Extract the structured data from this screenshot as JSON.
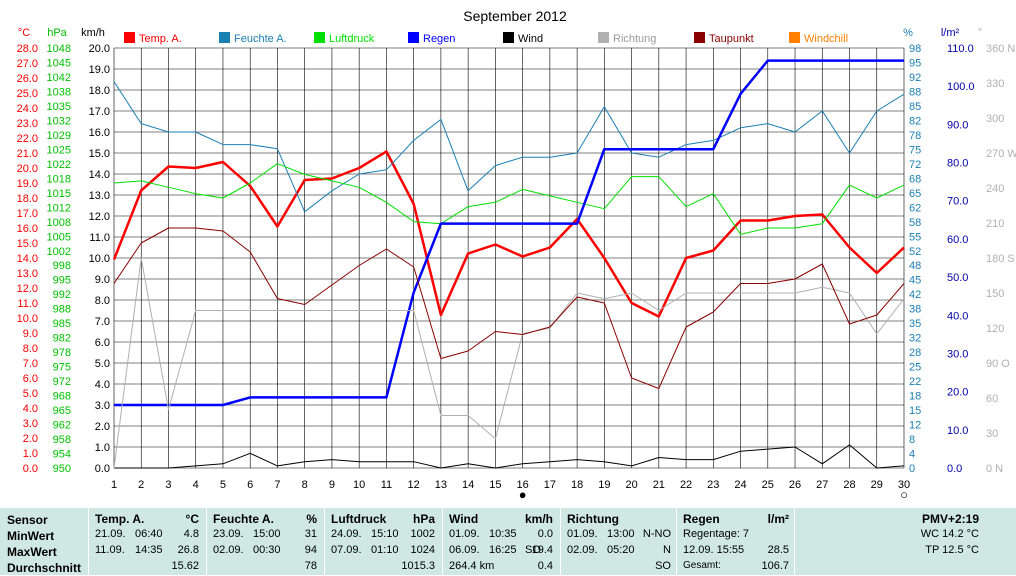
{
  "chart_data": {
    "type": "line",
    "title": "September 2012",
    "x": [
      1,
      2,
      3,
      4,
      5,
      6,
      7,
      8,
      9,
      10,
      11,
      12,
      13,
      14,
      15,
      16,
      17,
      18,
      19,
      20,
      21,
      22,
      23,
      24,
      25,
      26,
      27,
      28,
      29,
      30
    ],
    "xlim": [
      1,
      30
    ],
    "legend": [
      {
        "label": "Temp. A.",
        "color": "#ff0000"
      },
      {
        "label": "Feuchte A.",
        "color": "#1a7fb3"
      },
      {
        "label": "Luftdruck",
        "color": "#00e000"
      },
      {
        "label": "Regen",
        "color": "#0000ff"
      },
      {
        "label": "Wind",
        "color": "#000000"
      },
      {
        "label": "Richtung",
        "color": "#b0b0b0"
      },
      {
        "label": "Taupunkt",
        "color": "#8b0000"
      },
      {
        "label": "Windchill",
        "color": "#ff8000"
      }
    ],
    "axes": {
      "temp": {
        "unit": "°C",
        "color": "#ff0000",
        "min": 0,
        "max": 28,
        "ticks": [
          "0.0",
          "1.0",
          "2.0",
          "3.0",
          "4.0",
          "5.0",
          "6.0",
          "7.0",
          "8.0",
          "9.0",
          "10.0",
          "11.0",
          "12.0",
          "13.0",
          "14.0",
          "15.0",
          "16.0",
          "17.0",
          "18.0",
          "19.0",
          "20.0",
          "21.0",
          "22.0",
          "23.0",
          "24.0",
          "25.0",
          "26.0",
          "27.0",
          "28.0"
        ]
      },
      "pressure": {
        "unit": "hPa",
        "color": "#00c000",
        "min": 950,
        "max": 1048,
        "ticks": [
          "950",
          "954",
          "958",
          "962",
          "965",
          "968",
          "972",
          "975",
          "978",
          "982",
          "985",
          "988",
          "992",
          "995",
          "998",
          "1002",
          "1005",
          "1008",
          "1012",
          "1015",
          "1018",
          "1022",
          "1025",
          "1029",
          "1032",
          "1035",
          "1038",
          "1042",
          "1045",
          "1048"
        ]
      },
      "wind": {
        "unit": "km/h",
        "color": "#000000",
        "min": 0,
        "max": 20,
        "ticks": [
          "0.0",
          "1.0",
          "2.0",
          "3.0",
          "4.0",
          "5.0",
          "6.0",
          "7.0",
          "8.0",
          "9.0",
          "10.0",
          "11.0",
          "12.0",
          "13.0",
          "14.0",
          "15.0",
          "16.0",
          "17.0",
          "18.0",
          "19.0",
          "20.0"
        ]
      },
      "humidity": {
        "unit": "%",
        "color": "#1a7fb3",
        "min": 0,
        "max": 100,
        "ticks": [
          "0",
          "4",
          "8",
          "12",
          "15",
          "18",
          "22",
          "25",
          "28",
          "32",
          "35",
          "38",
          "42",
          "45",
          "48",
          "52",
          "55",
          "58",
          "62",
          "65",
          "68",
          "72",
          "75",
          "78",
          "82",
          "85",
          "88",
          "92",
          "95",
          "98"
        ]
      },
      "rain": {
        "unit": "l/m²",
        "color": "#0000aa",
        "min": 0,
        "max": 110,
        "ticks": [
          "0.0",
          "10.0",
          "20.0",
          "30.0",
          "40.0",
          "50.0",
          "60.0",
          "70.0",
          "80.0",
          "90.0",
          "100.0",
          "110.0"
        ]
      },
      "direction": {
        "unit": "°",
        "color": "#b0b0b0",
        "min": 0,
        "max": 360,
        "ticks": [
          "0 N",
          "30",
          "60",
          "90 O",
          "120",
          "150",
          "180 S",
          "210",
          "240",
          "270 W",
          "300",
          "330",
          "360 N"
        ]
      }
    },
    "series": [
      {
        "name": "Temp. A.",
        "axis": "temp",
        "color": "#ff0000",
        "width": 2.5,
        "values": [
          13.9,
          18.5,
          20.1,
          20.0,
          20.4,
          18.8,
          16.1,
          19.2,
          19.3,
          20.0,
          21.1,
          17.6,
          10.2,
          14.3,
          14.9,
          14.1,
          14.7,
          16.6,
          14.0,
          11.0,
          10.1,
          14.0,
          14.5,
          16.5,
          16.5,
          16.8,
          16.9,
          14.7,
          13.0,
          14.7
        ]
      },
      {
        "name": "Feuchte A.",
        "axis": "humidity",
        "color": "#1a7fb3",
        "width": 1,
        "values": [
          92,
          82,
          80,
          80,
          77,
          77,
          76,
          61,
          66,
          70,
          71,
          78,
          83,
          66,
          72,
          74,
          74,
          75,
          86,
          75,
          74,
          77,
          78,
          81,
          82,
          80,
          85,
          75,
          85,
          89
        ]
      },
      {
        "name": "Luftdruck",
        "axis": "pressure",
        "color": "#00e000",
        "width": 1,
        "values": [
          1016.5,
          1017,
          1015.5,
          1014,
          1013,
          1016.5,
          1021,
          1018.5,
          1017,
          1015.5,
          1012,
          1007.5,
          1007,
          1011,
          1012,
          1015,
          1013.5,
          1012,
          1010.5,
          1018,
          1018,
          1011,
          1014,
          1004.5,
          1006,
          1006,
          1007,
          1016,
          1013,
          1016
        ]
      },
      {
        "name": "Regen",
        "axis": "rain",
        "color": "#0000ff",
        "width": 2.5,
        "values": [
          16.5,
          16.5,
          16.5,
          16.5,
          16.5,
          18.5,
          18.5,
          18.5,
          18.5,
          18.5,
          18.5,
          46,
          64,
          64,
          64,
          64,
          64,
          64,
          83.5,
          83.5,
          83.5,
          83.5,
          83.5,
          98,
          106.7,
          106.7,
          106.7,
          106.7,
          106.7,
          106.7
        ]
      },
      {
        "name": "Wind",
        "axis": "wind",
        "color": "#000000",
        "width": 1,
        "values": [
          0.0,
          0.0,
          0.0,
          0.1,
          0.2,
          0.7,
          0.1,
          0.3,
          0.4,
          0.3,
          0.3,
          0.3,
          0.0,
          0.2,
          0.0,
          0.2,
          0.3,
          0.4,
          0.3,
          0.1,
          0.5,
          0.4,
          0.4,
          0.8,
          0.9,
          1.0,
          0.2,
          1.1,
          0.0,
          0.1
        ]
      },
      {
        "name": "Richtung",
        "axis": "direction",
        "color": "#b0b0b0",
        "width": 1,
        "values": [
          0,
          180,
          50,
          135,
          135,
          135,
          135,
          135,
          135,
          135,
          135,
          135,
          45,
          45,
          25,
          115,
          120,
          150,
          145,
          150,
          135,
          150,
          150,
          150,
          150,
          150,
          155,
          150,
          115,
          145
        ]
      },
      {
        "name": "Taupunkt",
        "axis": "temp",
        "color": "#8b0000",
        "width": 1,
        "values": [
          12.3,
          15.0,
          16.0,
          16.0,
          15.8,
          14.4,
          11.3,
          10.9,
          12.2,
          13.5,
          14.6,
          13.4,
          7.3,
          7.8,
          9.1,
          8.9,
          9.4,
          11.4,
          11.0,
          6.0,
          5.3,
          9.4,
          10.4,
          12.3,
          12.3,
          12.6,
          13.6,
          9.6,
          10.2,
          12.3
        ]
      }
    ],
    "markers": [
      {
        "at": 16,
        "symbol": "●"
      },
      {
        "at": 30,
        "symbol": "○"
      }
    ]
  },
  "stats": {
    "sensor": {
      "header": "Sensor",
      "rows": [
        "MinWert",
        "MaxWert",
        "Durchschnitt"
      ]
    },
    "temp": {
      "header": "Temp. A.",
      "unit": "°C",
      "rows": [
        [
          "21.09.",
          "06:40",
          "4.8"
        ],
        [
          "11.09.",
          "14:35",
          "26.8"
        ],
        [
          "",
          "",
          "15.62"
        ]
      ]
    },
    "feuchte": {
      "header": "Feuchte A.",
      "unit": "%",
      "rows": [
        [
          "23.09.",
          "15:00",
          "31"
        ],
        [
          "02.09.",
          "00:30",
          "94"
        ],
        [
          "",
          "",
          "78"
        ]
      ]
    },
    "luftdruck": {
      "header": "Luftdruck",
      "unit": "hPa",
      "rows": [
        [
          "24.09.",
          "15:10",
          "1002"
        ],
        [
          "07.09.",
          "01:10",
          "1024"
        ],
        [
          "",
          "",
          "1015.3"
        ]
      ]
    },
    "wind": {
      "header": "Wind",
      "unit": "km/h",
      "rows": [
        [
          "01.09.",
          "10:35",
          "0.0"
        ],
        [
          "06.09.",
          "16:25",
          "SO",
          "19.4"
        ],
        [
          "264.4 km",
          "",
          "0.4"
        ]
      ]
    },
    "richtung": {
      "header": "Richtung",
      "rows": [
        [
          "01.09.",
          "13:00",
          "N-NO"
        ],
        [
          "02.09.",
          "05:20",
          "N"
        ],
        [
          "",
          "",
          "SO"
        ]
      ]
    },
    "regen": {
      "header": "Regen",
      "unit": "l/m²",
      "rows": [
        [
          "Regentage: 7",
          ""
        ],
        [
          "12.09.  15:55",
          "28.5"
        ],
        [
          "Gesamt:",
          "106.7"
        ]
      ]
    },
    "pmv": {
      "header": "PMV+2:19",
      "rows": [
        "WC 14.2 °C",
        "TP 12.5 °C"
      ]
    }
  }
}
